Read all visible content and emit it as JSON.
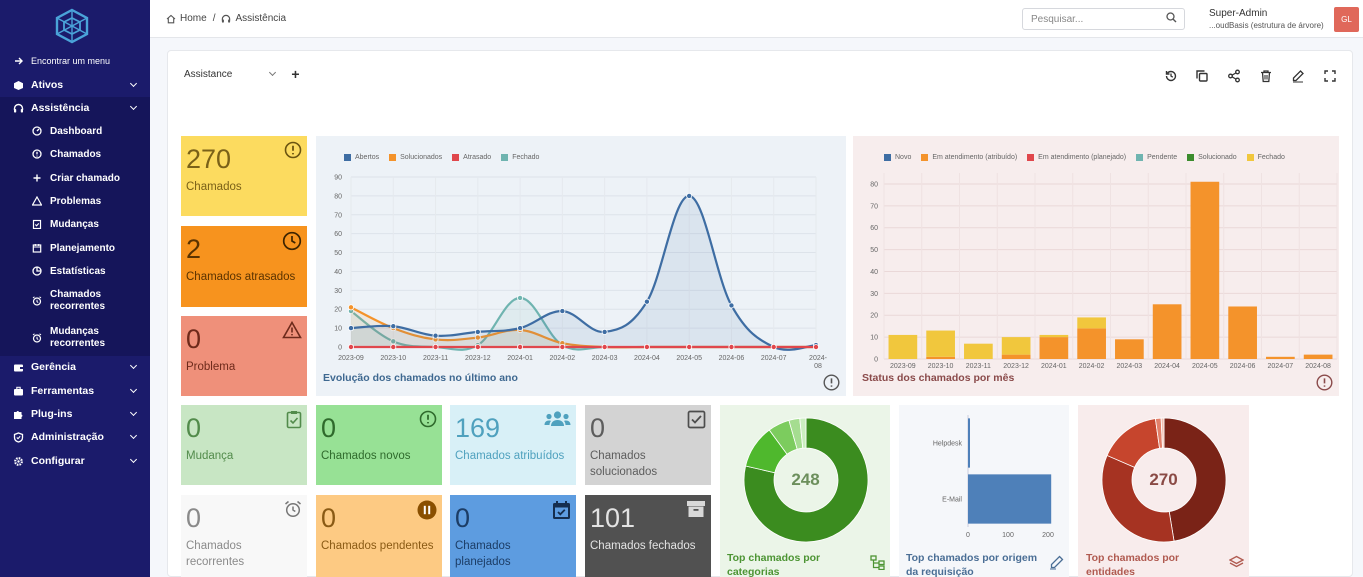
{
  "sidebar": {
    "find_menu": "Encontrar um menu",
    "items": [
      {
        "label": "Ativos",
        "icon": "box-icon"
      },
      {
        "label": "Assistência",
        "icon": "headset-icon"
      },
      {
        "label": "Gerência",
        "icon": "wallet-icon"
      },
      {
        "label": "Ferramentas",
        "icon": "briefcase-icon"
      },
      {
        "label": "Plug-ins",
        "icon": "puzzle-icon"
      },
      {
        "label": "Administração",
        "icon": "shield-icon"
      },
      {
        "label": "Configurar",
        "icon": "gear-icon"
      }
    ],
    "sub_items": [
      {
        "label": "Dashboard",
        "icon": "gauge-icon"
      },
      {
        "label": "Chamados",
        "icon": "alert-circle-icon"
      },
      {
        "label": "Criar chamado",
        "icon": "plus-icon"
      },
      {
        "label": "Problemas",
        "icon": "warning-icon"
      },
      {
        "label": "Mudanças",
        "icon": "clipboard-check-icon"
      },
      {
        "label": "Planejamento",
        "icon": "calendar-icon"
      },
      {
        "label": "Estatísticas",
        "icon": "pie-icon"
      },
      {
        "label1": "Chamados",
        "label2": "recorrentes",
        "icon": "alarm-icon"
      },
      {
        "label1": "Mudanças",
        "label2": "recorrentes",
        "icon": "alarm-icon"
      }
    ]
  },
  "breadcrumb": {
    "home": "Home",
    "sep": "/",
    "current": "Assistência"
  },
  "search": {
    "placeholder": "Pesquisar..."
  },
  "user": {
    "name": "Super-Admin",
    "entity": "...oudBasis (estrutura de árvore)",
    "initials": "GL"
  },
  "dashboard": {
    "selected": "Assistance",
    "add": "+"
  },
  "cards": {
    "chamados": {
      "value": "270",
      "label": "Chamados",
      "bg": "#fcdb5f"
    },
    "atrasados": {
      "value": "2",
      "label": "Chamados atrasados",
      "bg": "#f7931e"
    },
    "problema": {
      "value": "0",
      "label": "Problema",
      "bg": "#ef907a"
    },
    "mudanca": {
      "value": "0",
      "label": "Mudança",
      "bg": "#c8e6c4"
    },
    "novos": {
      "value": "0",
      "label": "Chamados novos",
      "bg": "#97e195"
    },
    "atribuidos": {
      "value": "169",
      "label": "Chamados atribuídos",
      "bg": "#d8f0f7"
    },
    "solucionados": {
      "value": "0",
      "label1": "Chamados",
      "label2": "solucionados",
      "bg": "#d3d3d3"
    },
    "recorrentes": {
      "value": "0",
      "label1": "Chamados",
      "label2": "recorrentes",
      "bg": "#f8f8f8"
    },
    "pendentes": {
      "value": "0",
      "label": "Chamados pendentes",
      "bg": "#fdca83"
    },
    "planejados": {
      "value": "0",
      "label1": "Chamados",
      "label2": "planejados",
      "bg": "#5d9ce0"
    },
    "fechados": {
      "value": "101",
      "label": "Chamados fechados",
      "bg": "#515151"
    }
  },
  "chart_data": [
    {
      "type": "line",
      "title": "Evolução dos chamados no último ano",
      "categories": [
        "2023-09",
        "2023-10",
        "2023-11",
        "2023-12",
        "2024-01",
        "2024-02",
        "2024-03",
        "2024-04",
        "2024-05",
        "2024-06",
        "2024-07",
        "2024-08"
      ],
      "ylim": [
        0,
        90
      ],
      "yticks": [
        0,
        10,
        20,
        30,
        40,
        50,
        60,
        70,
        80,
        90
      ],
      "series": [
        {
          "name": "Abertos",
          "color": "#3e6da3",
          "values": [
            10,
            11,
            6,
            8,
            10,
            19,
            8,
            24,
            80,
            22,
            0,
            1
          ]
        },
        {
          "name": "Solucionados",
          "color": "#f4932b",
          "values": [
            21,
            10,
            4,
            5,
            9,
            2,
            0,
            0,
            0,
            0,
            0,
            0
          ]
        },
        {
          "name": "Atrasado",
          "color": "#e0474c",
          "values": [
            0,
            0,
            0,
            0,
            0,
            0,
            0,
            0,
            0,
            0,
            0,
            0
          ]
        },
        {
          "name": "Fechado",
          "color": "#6fb4b0",
          "values": [
            19,
            3,
            0,
            1,
            26,
            1,
            0,
            0,
            0,
            0,
            0,
            0
          ]
        }
      ],
      "grid": true,
      "legend": "top"
    },
    {
      "type": "bar",
      "title": "Status dos chamados por mês",
      "categories": [
        "2023-09",
        "2023-10",
        "2023-11",
        "2023-12",
        "2024-01",
        "2024-02",
        "2024-03",
        "2024-04",
        "2024-05",
        "2024-06",
        "2024-07",
        "2024-08"
      ],
      "ylim": [
        0,
        85
      ],
      "yticks": [
        0,
        10,
        20,
        30,
        40,
        50,
        60,
        70,
        80
      ],
      "series": [
        {
          "name": "Novo",
          "color": "#3e6da3",
          "values": [
            0,
            0,
            0,
            0,
            0,
            0,
            0,
            0,
            0,
            0,
            0,
            0
          ]
        },
        {
          "name": "Em atendimento (atribuído)",
          "color": "#f4932b",
          "values": [
            0,
            1,
            0,
            2,
            10,
            14,
            9,
            25,
            81,
            24,
            1,
            2
          ]
        },
        {
          "name": "Em atendimento (planejado)",
          "color": "#e0474c",
          "values": [
            0,
            0,
            0,
            0,
            0,
            0,
            0,
            0,
            0,
            0,
            0,
            0
          ]
        },
        {
          "name": "Pendente",
          "color": "#6fb4b0",
          "values": [
            0,
            0,
            0,
            0,
            0,
            0,
            0,
            0,
            0,
            0,
            0,
            0
          ]
        },
        {
          "name": "Solucionado",
          "color": "#3b8c2d",
          "values": [
            0,
            0,
            0,
            0,
            0,
            0,
            0,
            0,
            0,
            0,
            0,
            0
          ]
        },
        {
          "name": "Fechado",
          "color": "#f1c73d",
          "values": [
            11,
            12,
            7,
            8,
            1,
            5,
            0,
            0,
            0,
            0,
            0,
            0
          ]
        }
      ],
      "stacked": true,
      "grid": true,
      "legend": "top"
    },
    {
      "type": "pie",
      "title": "Top chamados por categorias",
      "center_label": "248",
      "slices": [
        {
          "value": 195,
          "color": "#3b8c1f"
        },
        {
          "value": 28,
          "color": "#4fb82d"
        },
        {
          "value": 14,
          "color": "#7ccc5e"
        },
        {
          "value": 7,
          "color": "#a5dd90"
        },
        {
          "value": 4,
          "color": "#cbeec0"
        }
      ]
    },
    {
      "type": "bar",
      "orientation": "horizontal",
      "title": "Top chamados por origem da requisição",
      "categories": [
        "Helpdesk",
        "E-Mail"
      ],
      "values": [
        2,
        208
      ],
      "xlim": [
        0,
        230
      ],
      "xticks": [
        0,
        100,
        200
      ],
      "color": "#4e80b9"
    },
    {
      "type": "pie",
      "title": "Top chamados por entidades",
      "center_label": "270",
      "slices": [
        {
          "value": 128,
          "color": "#7a2317"
        },
        {
          "value": 92,
          "color": "#a63322"
        },
        {
          "value": 44,
          "color": "#c6452d"
        },
        {
          "value": 4,
          "color": "#e2806a"
        },
        {
          "value": 2,
          "color": "#f3c0b2"
        }
      ]
    }
  ]
}
